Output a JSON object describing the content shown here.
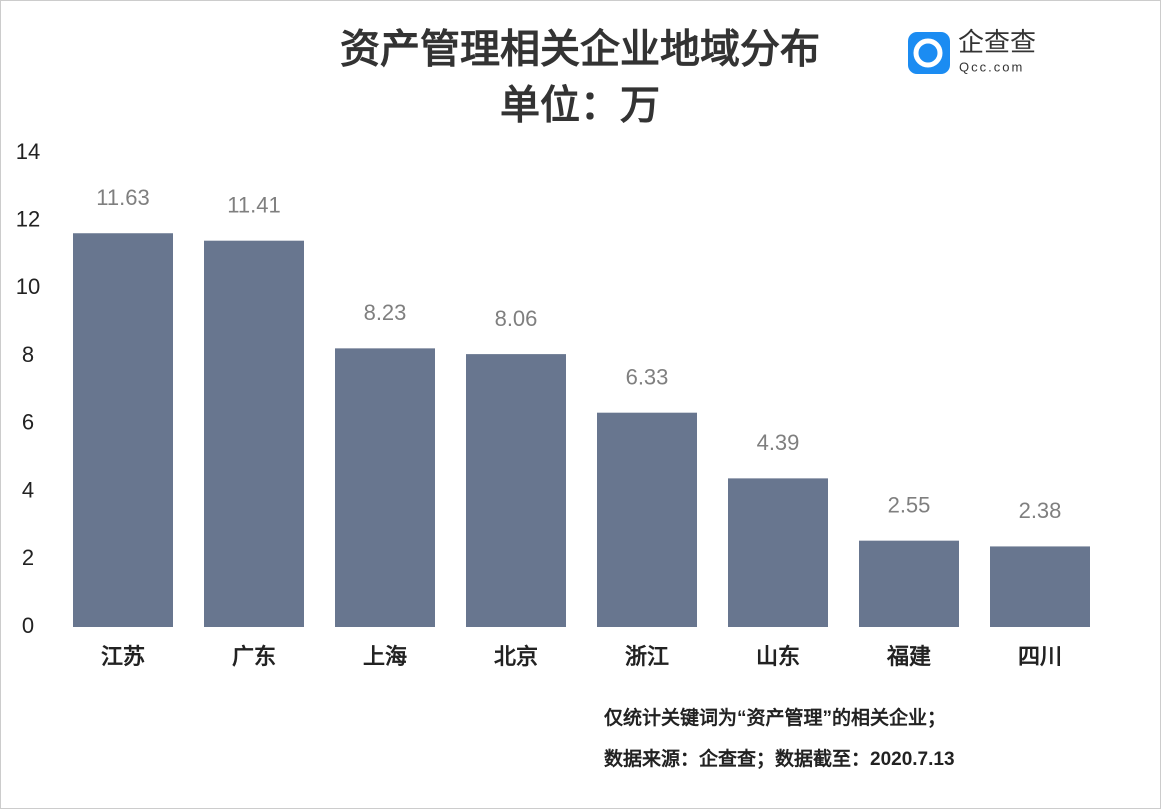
{
  "chart_data": {
    "type": "bar",
    "title": "资产管理相关企业地域分布",
    "subtitle": "单位：万",
    "categories": [
      "江苏",
      "广东",
      "上海",
      "北京",
      "浙江",
      "山东",
      "福建",
      "四川"
    ],
    "values": [
      11.63,
      11.41,
      8.23,
      8.06,
      6.33,
      4.39,
      2.55,
      2.38
    ],
    "color": "#68768f",
    "ylim": [
      0,
      14
    ],
    "yticks": [
      0,
      2,
      4,
      6,
      8,
      10,
      12,
      14
    ],
    "grid": false
  },
  "logo": {
    "name": "企查查",
    "url": "Qcc.com"
  },
  "notes": [
    "仅统计关键词为“资产管理”的相关企业；",
    "数据来源：企查查；数据截至：2020.7.13"
  ]
}
